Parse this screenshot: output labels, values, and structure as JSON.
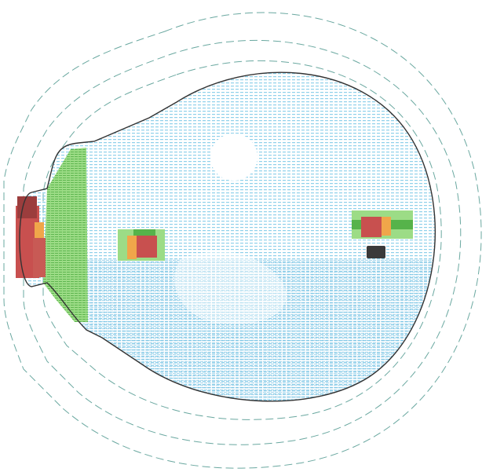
{
  "colors": {
    "background": "#ffffff",
    "outline": "#333333",
    "dashed_rings": "#6aa8a0",
    "mesh_light": "#a9dcef",
    "mesh_dense": "#7ec8e6",
    "zone_green": "#7fcf6a",
    "zone_green_dark": "#56b34a",
    "zone_orange": "#f0a64a",
    "zone_red": "#c8504f",
    "zone_maroon": "#9b3d3d",
    "zone_dark": "#3a3a3a"
  },
  "labels": {}
}
